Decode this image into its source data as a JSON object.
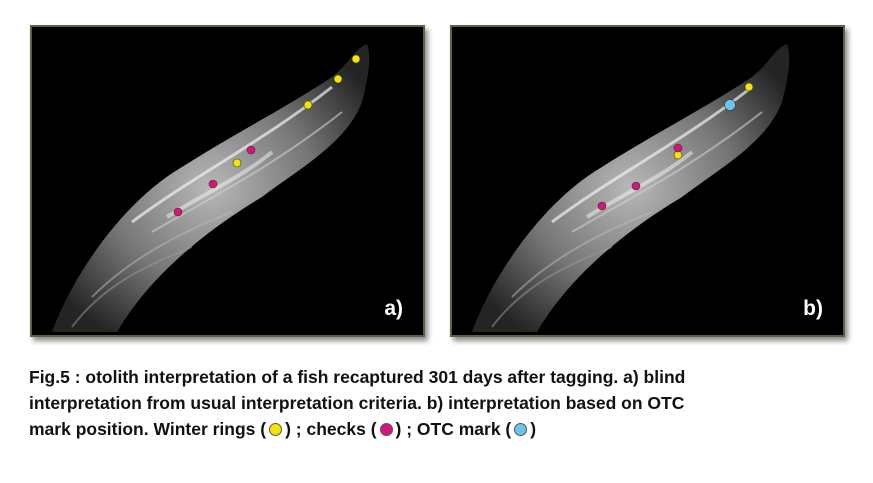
{
  "colors": {
    "winter_ring": "#f6e400",
    "check": "#d6157a",
    "otc_mark": "#6cc3ee",
    "frame": "#5d6340"
  },
  "panels": [
    {
      "label": "a)",
      "markers": [
        {
          "type": "winter_ring"
        },
        {
          "type": "winter_ring"
        },
        {
          "type": "winter_ring"
        },
        {
          "type": "winter_ring"
        },
        {
          "type": "check"
        },
        {
          "type": "check"
        },
        {
          "type": "check"
        }
      ]
    },
    {
      "label": "b)",
      "markers": [
        {
          "type": "winter_ring"
        },
        {
          "type": "otc_mark"
        },
        {
          "type": "winter_ring"
        },
        {
          "type": "check"
        },
        {
          "type": "check"
        },
        {
          "type": "check"
        }
      ]
    }
  ],
  "caption": {
    "line1": "Fig.5 : otolith interpretation of a fish recaptured 301 days after tagging. a) blind",
    "line2": "interpretation from usual interpretation criteria. b) interpretation based on OTC",
    "line3_a": "mark  position. Winter rings (",
    "line3_b": ") ; checks (",
    "line3_c": ") ; OTC mark (",
    "line3_d": ")"
  }
}
